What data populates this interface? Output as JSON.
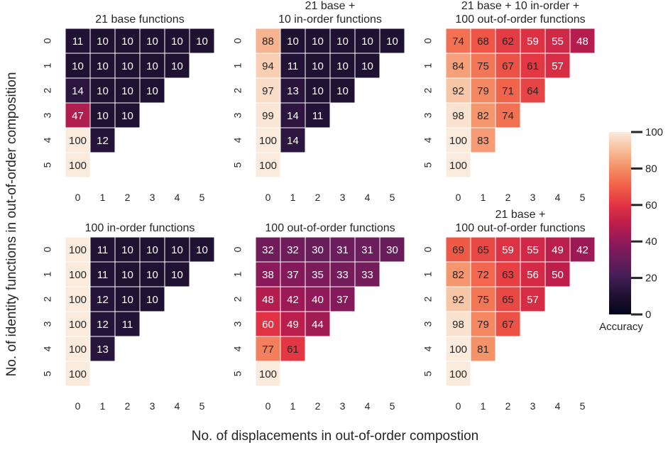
{
  "figure": {
    "xlabel": "No. of displacements in out-of-order compostion",
    "ylabel": "No. of identity functions in out-of-order composition"
  },
  "colorbar": {
    "label": "Accuracy",
    "min": 0,
    "max": 100,
    "ticks": [
      "0",
      "20",
      "40",
      "60",
      "80",
      "100"
    ]
  },
  "colors": {
    "colormap": "rocket",
    "cell_border": "#ffffff",
    "text_on_dark": "#ffffff",
    "text_on_light": "#262626"
  },
  "chart_data": [
    {
      "type": "heatmap",
      "title_lines": [
        "21 base functions"
      ],
      "x_ticks": [
        "0",
        "1",
        "2",
        "3",
        "4",
        "5"
      ],
      "y_ticks": [
        "0",
        "1",
        "2",
        "3",
        "4",
        "5"
      ],
      "values": [
        [
          11,
          10,
          10,
          10,
          10,
          10
        ],
        [
          10,
          10,
          10,
          10,
          10
        ],
        [
          14,
          10,
          10,
          10
        ],
        [
          47,
          10,
          10
        ],
        [
          100,
          12
        ],
        [
          100
        ]
      ]
    },
    {
      "type": "heatmap",
      "title_lines": [
        "21 base +",
        "10 in-order functions"
      ],
      "x_ticks": [
        "0",
        "1",
        "2",
        "3",
        "4",
        "5"
      ],
      "y_ticks": [
        "0",
        "1",
        "2",
        "3",
        "4",
        "5"
      ],
      "values": [
        [
          88,
          10,
          10,
          10,
          10,
          10
        ],
        [
          94,
          11,
          10,
          10,
          10
        ],
        [
          97,
          13,
          10,
          10
        ],
        [
          99,
          14,
          11
        ],
        [
          100,
          14
        ],
        [
          100
        ]
      ]
    },
    {
      "type": "heatmap",
      "title_lines": [
        "21 base + 10 in-order +",
        "100 out-of-order functions"
      ],
      "x_ticks": [
        "0",
        "1",
        "2",
        "3",
        "4",
        "5"
      ],
      "y_ticks": [
        "0",
        "1",
        "2",
        "3",
        "4",
        "5"
      ],
      "values": [
        [
          74,
          68,
          62,
          59,
          55,
          48
        ],
        [
          84,
          75,
          67,
          61,
          57
        ],
        [
          92,
          79,
          71,
          64
        ],
        [
          98,
          82,
          74
        ],
        [
          100,
          83
        ],
        [
          100
        ]
      ]
    },
    {
      "type": "heatmap",
      "title_lines": [
        "100 in-order functions"
      ],
      "x_ticks": [
        "0",
        "1",
        "2",
        "3",
        "4",
        "5"
      ],
      "y_ticks": [
        "0",
        "1",
        "2",
        "3",
        "4",
        "5"
      ],
      "values": [
        [
          100,
          11,
          10,
          10,
          10,
          10
        ],
        [
          100,
          11,
          10,
          10,
          10
        ],
        [
          100,
          12,
          10,
          10
        ],
        [
          100,
          12,
          11
        ],
        [
          100,
          13
        ],
        [
          100
        ]
      ]
    },
    {
      "type": "heatmap",
      "title_lines": [
        "100 out-of-order functions"
      ],
      "x_ticks": [
        "0",
        "1",
        "2",
        "3",
        "4",
        "5"
      ],
      "y_ticks": [
        "0",
        "1",
        "2",
        "3",
        "4",
        "5"
      ],
      "values": [
        [
          32,
          32,
          30,
          31,
          31,
          30
        ],
        [
          38,
          37,
          35,
          33,
          33
        ],
        [
          48,
          42,
          40,
          37
        ],
        [
          60,
          49,
          44
        ],
        [
          77,
          61
        ],
        [
          100
        ]
      ]
    },
    {
      "type": "heatmap",
      "title_lines": [
        "21 base +",
        "100 out-of-order functions"
      ],
      "x_ticks": [
        "0",
        "1",
        "2",
        "3",
        "4",
        "5"
      ],
      "y_ticks": [
        "0",
        "1",
        "2",
        "3",
        "4",
        "5"
      ],
      "values": [
        [
          69,
          65,
          59,
          55,
          49,
          42
        ],
        [
          82,
          72,
          63,
          56,
          50
        ],
        [
          92,
          75,
          65,
          57
        ],
        [
          98,
          79,
          67
        ],
        [
          100,
          81
        ],
        [
          100
        ]
      ]
    }
  ]
}
